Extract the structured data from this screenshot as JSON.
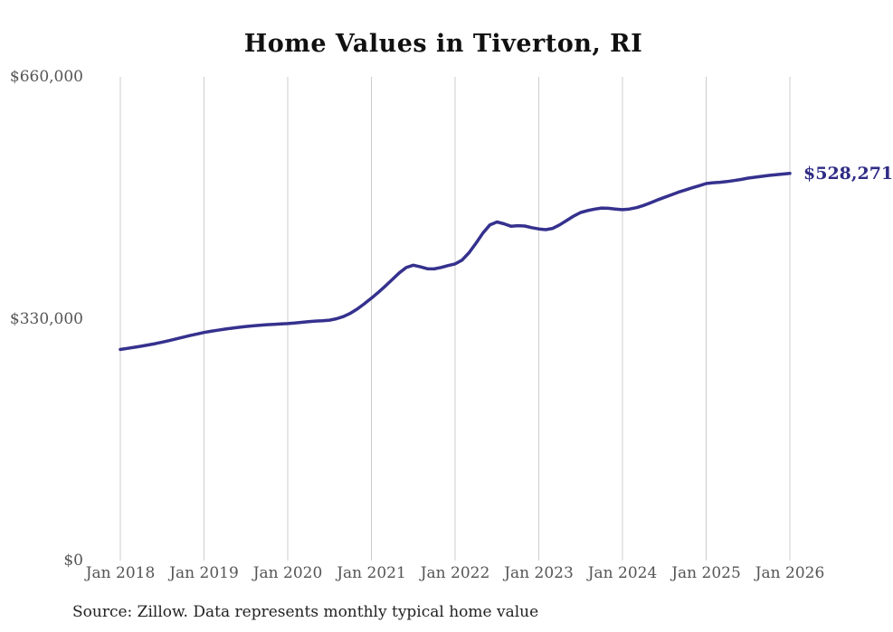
{
  "title": "Home Values in Tiverton, RI",
  "source_note": "Source: Zillow. Data represents monthly typical home value",
  "end_label": "$528,271",
  "colors": {
    "line": "#35318e",
    "grid": "#cccccc",
    "axis_text": "#555555",
    "title_text": "#111111",
    "end_label_text": "#2f2b85",
    "source_text": "#222222",
    "background": "#ffffff"
  },
  "chart_data": {
    "type": "line",
    "title": "Home Values in Tiverton, RI",
    "xlabel": "",
    "ylabel": "",
    "ylim": [
      0,
      660000
    ],
    "y_ticks": [
      0,
      330000,
      660000
    ],
    "y_tick_labels": [
      "$0",
      "$330,000",
      "$660,000"
    ],
    "x_tick_labels": [
      "Jan 2018",
      "Jan 2019",
      "Jan 2020",
      "Jan 2021",
      "Jan 2022",
      "Jan 2023",
      "Jan 2024",
      "Jan 2025",
      "Jan 2026"
    ],
    "x_tick_month_indices": [
      0,
      12,
      24,
      36,
      48,
      60,
      72,
      84,
      96
    ],
    "grid": "vertical-only",
    "legend": "none",
    "last_value": 528271,
    "last_value_label": "$528,271",
    "series": [
      {
        "name": "Monthly typical home value",
        "start_month": "Jan 2018",
        "end_month": "Jan 2026",
        "values": [
          288000,
          289500,
          291000,
          292500,
          294200,
          296000,
          298000,
          300200,
          302500,
          304800,
          307000,
          309100,
          311200,
          312800,
          314300,
          315800,
          317100,
          318300,
          319400,
          320300,
          321100,
          321800,
          322400,
          322900,
          323300,
          324100,
          325100,
          326100,
          326800,
          327200,
          328000,
          330000,
          333000,
          337500,
          343500,
          350500,
          358000,
          366000,
          374500,
          383500,
          392500,
          399800,
          403000,
          400800,
          398200,
          398000,
          400000,
          402500,
          404800,
          410000,
          420000,
          433000,
          447000,
          458000,
          462000,
          459500,
          456200,
          457000,
          456500,
          454200,
          452500,
          451500,
          453200,
          458000,
          464000,
          470000,
          475000,
          477600,
          479500,
          481000,
          480600,
          479600,
          478800,
          479600,
          481500,
          484500,
          488000,
          492000,
          495600,
          499000,
          502600,
          505600,
          508600,
          511500,
          514400,
          515500,
          516200,
          517200,
          518500,
          520000,
          521800,
          523100,
          524300,
          525500,
          526500,
          527400,
          528271
        ]
      }
    ]
  }
}
